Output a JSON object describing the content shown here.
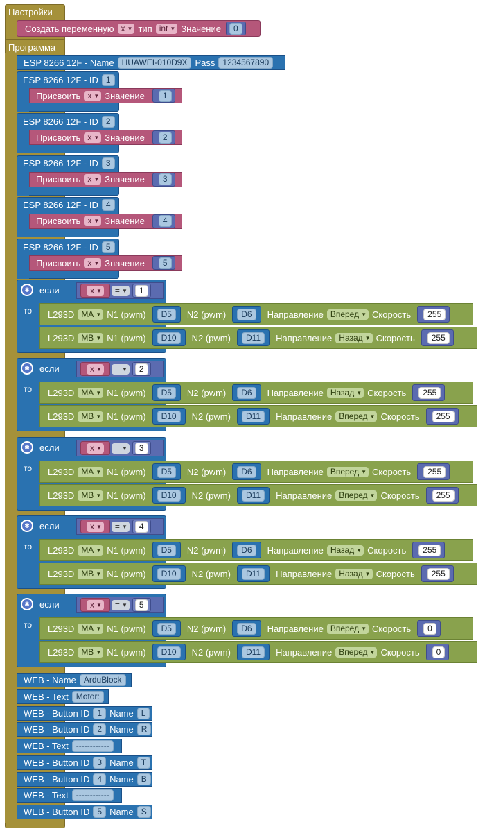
{
  "settings": {
    "label": "Настройки",
    "create_var": {
      "label": "Создать переменную",
      "var": "x",
      "type_label": "тип",
      "type": "int",
      "value_label": "Значение",
      "value": "0"
    }
  },
  "program": {
    "label": "Программа",
    "esp_main": {
      "label": "ESP 8266 12F - Name",
      "name": "HUAWEI-010D9X",
      "pass_label": "Pass",
      "pass": "1234567890"
    },
    "esp_ids": [
      {
        "label": "ESP 8266 12F - ID",
        "id": "1",
        "assign_label": "Присвоить",
        "var": "x",
        "value_label": "Значение",
        "value": "1"
      },
      {
        "label": "ESP 8266 12F - ID",
        "id": "2",
        "assign_label": "Присвоить",
        "var": "x",
        "value_label": "Значение",
        "value": "2"
      },
      {
        "label": "ESP 8266 12F - ID",
        "id": "3",
        "assign_label": "Присвоить",
        "var": "x",
        "value_label": "Значение",
        "value": "3"
      },
      {
        "label": "ESP 8266 12F - ID",
        "id": "4",
        "assign_label": "Присвоить",
        "var": "x",
        "value_label": "Значение",
        "value": "4"
      },
      {
        "label": "ESP 8266 12F - ID",
        "id": "5",
        "assign_label": "Присвоить",
        "var": "x",
        "value_label": "Значение",
        "value": "5"
      }
    ],
    "ifs": [
      {
        "if_label": "если",
        "then_label": "то",
        "var": "x",
        "op": "=",
        "value": "1",
        "motors": [
          {
            "label": "L293D",
            "motor": "MA",
            "n1_label": "N1 (pwm)",
            "n1": "D5",
            "n2_label": "N2 (pwm)",
            "n2": "D6",
            "dir_label": "Направление",
            "dir": "Вперед",
            "speed_label": "Скорость",
            "speed": "255"
          },
          {
            "label": "L293D",
            "motor": "MB",
            "n1_label": "N1 (pwm)",
            "n1": "D10",
            "n2_label": "N2 (pwm)",
            "n2": "D11",
            "dir_label": "Направление",
            "dir": "Назад",
            "speed_label": "Скорость",
            "speed": "255"
          }
        ]
      },
      {
        "if_label": "если",
        "then_label": "то",
        "var": "x",
        "op": "=",
        "value": "2",
        "motors": [
          {
            "label": "L293D",
            "motor": "MA",
            "n1_label": "N1 (pwm)",
            "n1": "D5",
            "n2_label": "N2 (pwm)",
            "n2": "D6",
            "dir_label": "Направление",
            "dir": "Назад",
            "speed_label": "Скорость",
            "speed": "255"
          },
          {
            "label": "L293D",
            "motor": "MB",
            "n1_label": "N1 (pwm)",
            "n1": "D10",
            "n2_label": "N2 (pwm)",
            "n2": "D11",
            "dir_label": "Направление",
            "dir": "Вперед",
            "speed_label": "Скорость",
            "speed": "255"
          }
        ]
      },
      {
        "if_label": "если",
        "then_label": "то",
        "var": "x",
        "op": "=",
        "value": "3",
        "motors": [
          {
            "label": "L293D",
            "motor": "MA",
            "n1_label": "N1 (pwm)",
            "n1": "D5",
            "n2_label": "N2 (pwm)",
            "n2": "D6",
            "dir_label": "Направление",
            "dir": "Вперед",
            "speed_label": "Скорость",
            "speed": "255"
          },
          {
            "label": "L293D",
            "motor": "MB",
            "n1_label": "N1 (pwm)",
            "n1": "D10",
            "n2_label": "N2 (pwm)",
            "n2": "D11",
            "dir_label": "Направление",
            "dir": "Вперед",
            "speed_label": "Скорость",
            "speed": "255"
          }
        ]
      },
      {
        "if_label": "если",
        "then_label": "то",
        "var": "x",
        "op": "=",
        "value": "4",
        "motors": [
          {
            "label": "L293D",
            "motor": "MA",
            "n1_label": "N1 (pwm)",
            "n1": "D5",
            "n2_label": "N2 (pwm)",
            "n2": "D6",
            "dir_label": "Направление",
            "dir": "Назад",
            "speed_label": "Скорость",
            "speed": "255"
          },
          {
            "label": "L293D",
            "motor": "MB",
            "n1_label": "N1 (pwm)",
            "n1": "D10",
            "n2_label": "N2 (pwm)",
            "n2": "D11",
            "dir_label": "Направление",
            "dir": "Назад",
            "speed_label": "Скорость",
            "speed": "255"
          }
        ]
      },
      {
        "if_label": "если",
        "then_label": "то",
        "var": "x",
        "op": "=",
        "value": "5",
        "motors": [
          {
            "label": "L293D",
            "motor": "MA",
            "n1_label": "N1 (pwm)",
            "n1": "D5",
            "n2_label": "N2 (pwm)",
            "n2": "D6",
            "dir_label": "Направление",
            "dir": "Вперед",
            "speed_label": "Скорость",
            "speed": "0"
          },
          {
            "label": "L293D",
            "motor": "MB",
            "n1_label": "N1 (pwm)",
            "n1": "D10",
            "n2_label": "N2 (pwm)",
            "n2": "D11",
            "dir_label": "Направление",
            "dir": "Вперед",
            "speed_label": "Скорость",
            "speed": "0"
          }
        ]
      }
    ],
    "web": [
      {
        "kind": "name",
        "label": "WEB - Name",
        "value": "ArduBlock"
      },
      {
        "kind": "text",
        "label": "WEB - Text",
        "value": "Motor:"
      },
      {
        "kind": "button",
        "label": "WEB - Button ID",
        "id": "1",
        "name_label": "Name",
        "name": "L"
      },
      {
        "kind": "button",
        "label": "WEB - Button ID",
        "id": "2",
        "name_label": "Name",
        "name": "R"
      },
      {
        "kind": "text",
        "label": "WEB - Text",
        "value": "------------"
      },
      {
        "kind": "button",
        "label": "WEB - Button ID",
        "id": "3",
        "name_label": "Name",
        "name": "T"
      },
      {
        "kind": "button",
        "label": "WEB - Button ID",
        "id": "4",
        "name_label": "Name",
        "name": "B"
      },
      {
        "kind": "text",
        "label": "WEB - Text",
        "value": "------------"
      },
      {
        "kind": "button",
        "label": "WEB - Button ID",
        "id": "5",
        "name_label": "Name",
        "name": "S"
      }
    ]
  }
}
